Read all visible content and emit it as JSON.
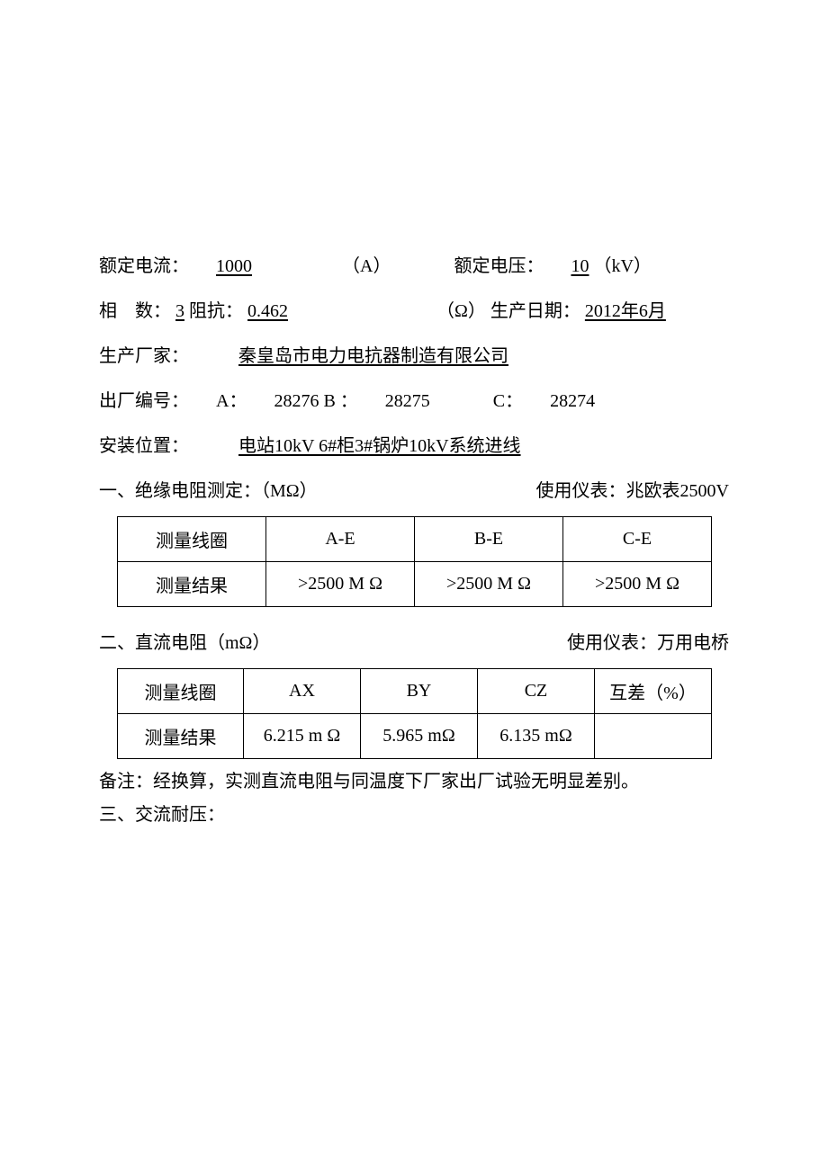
{
  "info": {
    "rated_current_label": "额定电流：",
    "rated_current_value": "1000",
    "rated_current_unit": "（A）",
    "rated_voltage_label": "额定电压：",
    "rated_voltage_value": "10",
    "rated_voltage_unit": "（kV）",
    "phase_label": "相 数：",
    "phase_value": "3",
    "impedance_label": " 阻抗：",
    "impedance_value": "0.462",
    "impedance_unit": "（Ω）",
    "production_date_label": " 生产日期：",
    "production_date_value": "2012年6月",
    "manufacturer_label": "生产厂家：",
    "manufacturer_value": "秦皇岛市电力电抗器制造有限公司",
    "serial_label": "出厂编号：",
    "serial_a_label": "A：",
    "serial_a_value": "28276",
    "serial_b_label": " B ：",
    "serial_b_value": "28275",
    "serial_c_label": "C：",
    "serial_c_value": "28274",
    "install_label": "安装位置：",
    "install_value": "电站10kV 6#柜3#锅炉10kV系统进线"
  },
  "section1": {
    "title": "一、绝缘电阻测定：（MΩ）",
    "instrument": "使用仪表：兆欧表2500V",
    "table": {
      "headers": [
        "测量线圈",
        "A-E",
        "B-E",
        "C-E"
      ],
      "row_label": "测量结果",
      "values": [
        ">2500 M Ω",
        ">2500 M Ω",
        ">2500 M Ω"
      ]
    }
  },
  "section2": {
    "title": "二、直流电阻（mΩ）",
    "instrument": "使用仪表：万用电桥",
    "table": {
      "headers": [
        "测量线圈",
        "AX",
        "BY",
        "CZ",
        "互差（%）"
      ],
      "row_label": "测量结果",
      "values": [
        "6.215 m Ω",
        "5.965 mΩ",
        "6.135 mΩ",
        ""
      ]
    },
    "note": "备注：经换算，实测直流电阻与同温度下厂家出厂试验无明显差别。"
  },
  "section3": {
    "title": "三、交流耐压："
  }
}
